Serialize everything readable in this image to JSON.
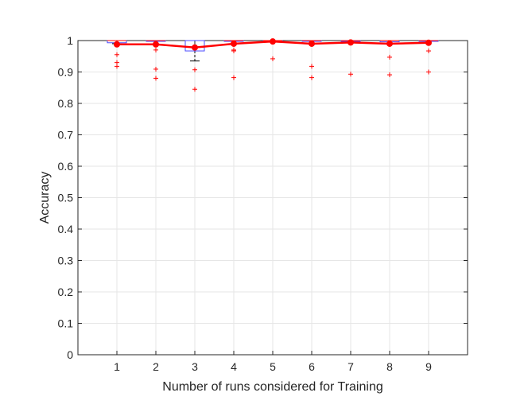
{
  "chart_data": {
    "type": "box",
    "xlabel": "Number of runs considered for Training",
    "ylabel": "Accuracy",
    "categories": [
      "1",
      "2",
      "3",
      "4",
      "5",
      "6",
      "7",
      "8",
      "9"
    ],
    "y_ticks": [
      "0",
      "0.1",
      "0.2",
      "0.3",
      "0.4",
      "0.5",
      "0.6",
      "0.7",
      "0.8",
      "0.9",
      "1"
    ],
    "ylim": [
      0,
      1
    ],
    "xlim": [
      0,
      10
    ],
    "grid": true,
    "boxes": [
      {
        "q1": 0.993,
        "median": 1.0,
        "q3": 1.0,
        "whisker_low": 0.99,
        "whisker_high": 1.0
      },
      {
        "q1": 1.0,
        "median": 1.0,
        "q3": 1.0,
        "whisker_low": 1.0,
        "whisker_high": 1.0
      },
      {
        "q1": 0.967,
        "median": 0.98,
        "q3": 1.0,
        "whisker_low": 0.935,
        "whisker_high": 1.0
      },
      {
        "q1": 1.0,
        "median": 1.0,
        "q3": 1.0,
        "whisker_low": 1.0,
        "whisker_high": 1.0
      },
      {
        "q1": 1.0,
        "median": 1.0,
        "q3": 1.0,
        "whisker_low": 1.0,
        "whisker_high": 1.0
      },
      {
        "q1": 0.998,
        "median": 1.0,
        "q3": 1.0,
        "whisker_low": 0.998,
        "whisker_high": 1.0
      },
      {
        "q1": 1.0,
        "median": 1.0,
        "q3": 1.0,
        "whisker_low": 1.0,
        "whisker_high": 1.0
      },
      {
        "q1": 0.996,
        "median": 1.0,
        "q3": 1.0,
        "whisker_low": 0.996,
        "whisker_high": 1.0
      },
      {
        "q1": 1.0,
        "median": 1.0,
        "q3": 1.0,
        "whisker_low": 1.0,
        "whisker_high": 1.0
      }
    ],
    "outliers": [
      [
        0.955,
        0.93,
        0.918
      ],
      [
        0.97,
        0.909,
        0.88
      ],
      [
        0.907,
        0.845
      ],
      [
        0.97,
        0.967,
        0.882
      ],
      [
        0.942
      ],
      [
        0.918,
        0.882
      ],
      [
        0.893
      ],
      [
        0.947,
        0.891
      ],
      [
        0.967,
        0.9
      ]
    ],
    "series": [
      {
        "type": "line",
        "values": [
          0.988,
          0.988,
          0.978,
          0.99,
          0.997,
          0.99,
          0.994,
          0.99,
          0.993
        ]
      }
    ],
    "colors": {
      "box": "#4b4bff",
      "whisker": "#000000",
      "outlier": "#ff0000",
      "mean_line": "#ff0000",
      "grid": "#e6e6e6",
      "axes": "#262626"
    }
  }
}
